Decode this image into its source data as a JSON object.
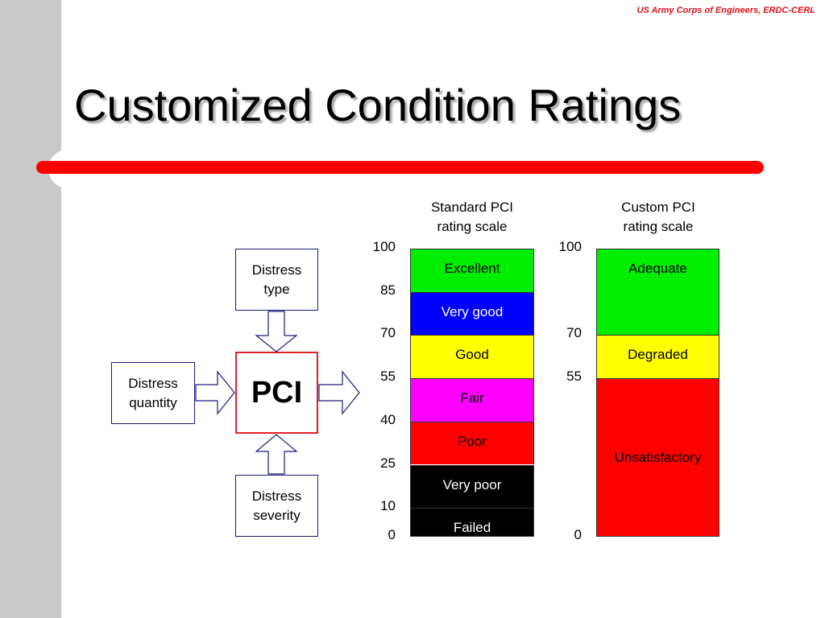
{
  "credit": "US Army Corps of Engineers, ERDC-CERL",
  "title": "Customized Condition Ratings",
  "diagram": {
    "distress_type": [
      "Distress",
      "type"
    ],
    "distress_quantity": [
      "Distress",
      "quantity"
    ],
    "distress_severity": [
      "Distress",
      "severity"
    ],
    "center": "PCI"
  },
  "standard_scale": {
    "title": [
      "Standard PCI",
      "rating scale"
    ],
    "ticks": [
      "100",
      "85",
      "70",
      "55",
      "40",
      "25",
      "10",
      "0"
    ],
    "bands": [
      {
        "label": "Excellent",
        "color": "#00ee00",
        "text_color": "#000000"
      },
      {
        "label": "Very good",
        "color": "#0000ff",
        "text_color": "#ffffff"
      },
      {
        "label": "Good",
        "color": "#ffff00",
        "text_color": "#000000"
      },
      {
        "label": "Fair",
        "color": "#ff00ff",
        "text_color": "#000000"
      },
      {
        "label": "Poor",
        "color": "#ff0000",
        "text_color": "#000000"
      },
      {
        "label": "Very poor",
        "color": "#000000",
        "text_color": "#ffffff"
      },
      {
        "label": "Failed",
        "color": "#000000",
        "text_color": "#ffffff"
      }
    ]
  },
  "custom_scale": {
    "title": [
      "Custom PCI",
      "rating scale"
    ],
    "ticks": [
      "100",
      "70",
      "55",
      "0"
    ],
    "bands": [
      {
        "label": "Adequate",
        "color": "#00ee00",
        "text_color": "#000000"
      },
      {
        "label": "Degraded",
        "color": "#ffff00",
        "text_color": "#000000"
      },
      {
        "label": "Unsatisfactory",
        "color": "#ff0000",
        "text_color": "#000000"
      }
    ]
  }
}
